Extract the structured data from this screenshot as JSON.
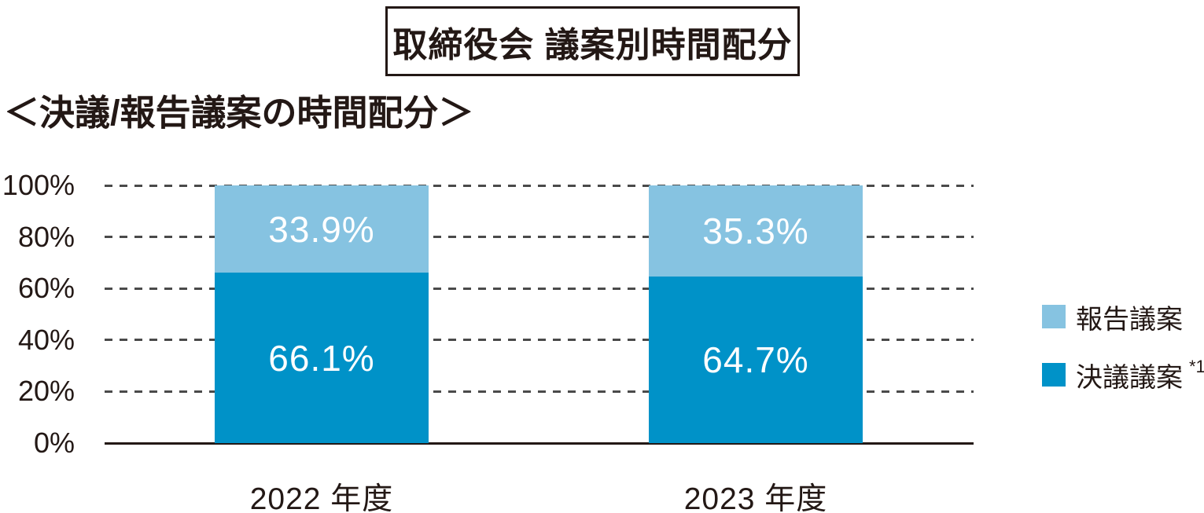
{
  "title": "取締役会 議案別時間配分",
  "subtitle": "＜決議/報告議案の時間配分＞",
  "colors": {
    "report_blue": "#86c3e1",
    "resolution_blue": "#0092c8",
    "text": "#231815",
    "grid": "#4a4a4a",
    "axis": "#231815",
    "bar_label": "#ffffff"
  },
  "legend": {
    "items": [
      {
        "label": "報告議案",
        "sup": "",
        "color": "#86c3e1"
      },
      {
        "label": "決議議案",
        "sup": "*1",
        "color": "#0092c8"
      }
    ]
  },
  "chart_data": {
    "type": "bar",
    "stacked": true,
    "title": "取締役会 議案別時間配分",
    "subtitle": "＜決議/報告議案の時間配分＞",
    "categories": [
      "2022 年度",
      "2023 年度"
    ],
    "series": [
      {
        "name": "決議議案 *1",
        "color": "#0092c8",
        "values": [
          66.1,
          64.7
        ],
        "labels": [
          "66.1%",
          "64.7%"
        ]
      },
      {
        "name": "報告議案",
        "color": "#86c3e1",
        "values": [
          33.9,
          35.3
        ],
        "labels": [
          "33.9%",
          "35.3%"
        ]
      }
    ],
    "xlabel": "",
    "ylabel": "",
    "ylim": [
      0,
      100
    ],
    "yticks": [
      {
        "label": "100%",
        "value": 100
      },
      {
        "label": "80%",
        "value": 80
      },
      {
        "label": "60%",
        "value": 60
      },
      {
        "label": "40%",
        "value": 40
      },
      {
        "label": "20%",
        "value": 20
      },
      {
        "label": "0%",
        "value": 0
      }
    ],
    "grid": "horizontal-dashed",
    "legend_position": "right"
  }
}
